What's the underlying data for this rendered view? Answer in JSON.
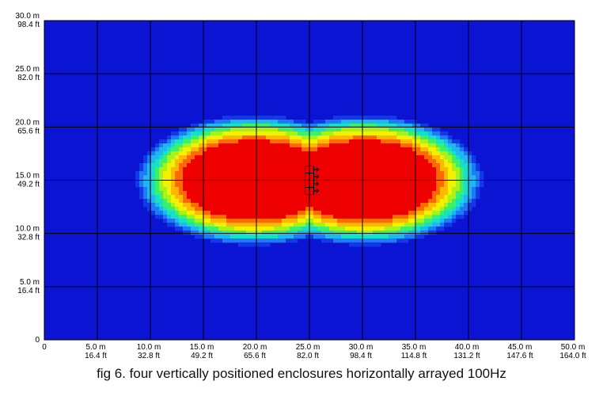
{
  "chart_data": {
    "type": "heatmap",
    "title": "",
    "xlabel": "",
    "ylabel": "",
    "xlim": [
      0,
      50
    ],
    "ylim": [
      0,
      30
    ],
    "grid": true,
    "x_ticks": [
      {
        "value": 0,
        "label": "0",
        "label2": ""
      },
      {
        "value": 5,
        "label": "5.0 m",
        "label2": "16.4 ft"
      },
      {
        "value": 10,
        "label": "10.0 m",
        "label2": "32.8 ft"
      },
      {
        "value": 15,
        "label": "15.0 m",
        "label2": "49.2 ft"
      },
      {
        "value": 20,
        "label": "20.0 m",
        "label2": "65.6 ft"
      },
      {
        "value": 25,
        "label": "25.0 m",
        "label2": "82.0 ft"
      },
      {
        "value": 30,
        "label": "30.0 m",
        "label2": "98.4 ft"
      },
      {
        "value": 35,
        "label": "35.0 m",
        "label2": "114.8 ft"
      },
      {
        "value": 40,
        "label": "40.0 m",
        "label2": "131.2 ft"
      },
      {
        "value": 45,
        "label": "45.0 m",
        "label2": "147.6 ft"
      },
      {
        "value": 50,
        "label": "50.0 m",
        "label2": "164.0 ft"
      }
    ],
    "y_ticks": [
      {
        "value": 0,
        "label": "0",
        "label2": ""
      },
      {
        "value": 5,
        "label": "5.0 m",
        "label2": "16.4 ft"
      },
      {
        "value": 10,
        "label": "10.0 m",
        "label2": "32.8 ft"
      },
      {
        "value": 15,
        "label": "15.0 m",
        "label2": "49.2 ft"
      },
      {
        "value": 20,
        "label": "20.0 m",
        "label2": "65.6 ft"
      },
      {
        "value": 25,
        "label": "25.0 m",
        "label2": "82.0 ft"
      },
      {
        "value": 30,
        "label": "30.0 m",
        "label2": "98.4 ft"
      }
    ],
    "sources": {
      "center_x": 25,
      "center_y": 15,
      "count": 4,
      "orientation": "vertical stack, facing right"
    },
    "lobes": [
      {
        "cx": 19.8,
        "cy": 15,
        "sx": 11.5,
        "sy": 6.3
      },
      {
        "cx": 30.2,
        "cy": 15,
        "sx": 11.5,
        "sy": 6.3
      }
    ],
    "colormap": [
      "#0b14d2",
      "#1238e8",
      "#1c7cf5",
      "#1fb7f0",
      "#18e0c8",
      "#3cf06a",
      "#a8f21c",
      "#f2f200",
      "#ffb800",
      "#ff6a00",
      "#ee0000"
    ],
    "background_color": "#0b14d2",
    "grid_color": "#000000"
  },
  "caption": "fig 6. four vertically positioned enclosures horizontally arrayed 100Hz"
}
